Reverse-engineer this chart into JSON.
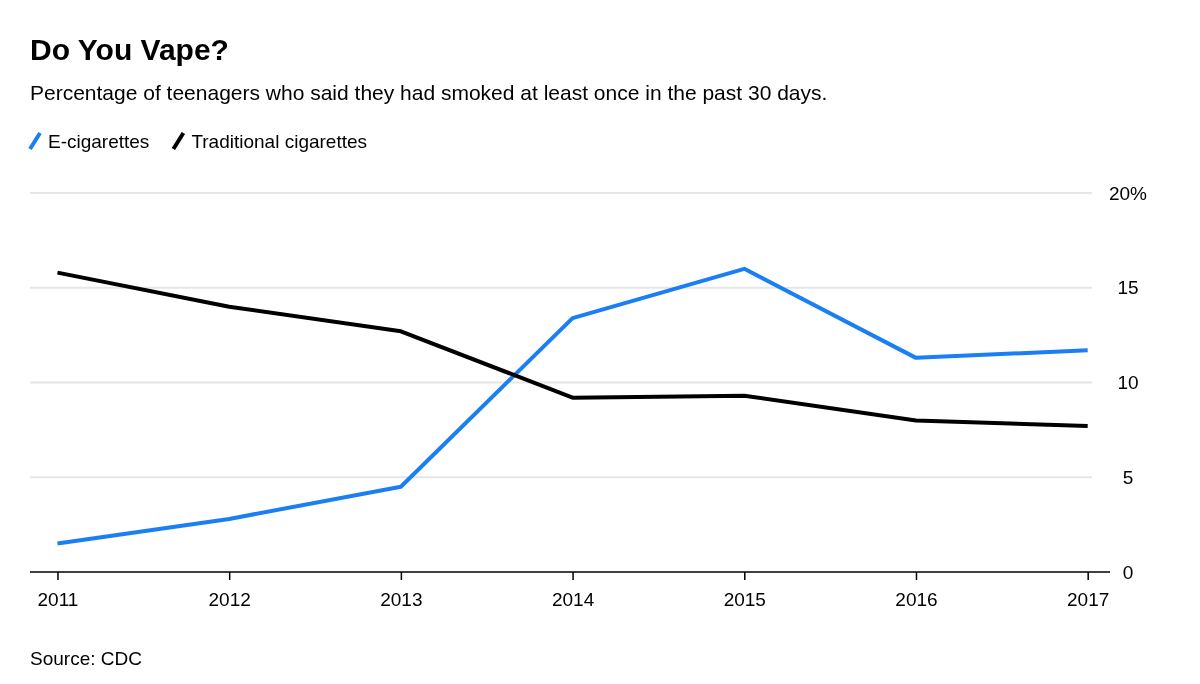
{
  "chart_data": {
    "type": "line",
    "title": "Do You Vape?",
    "subtitle": "Percentage of teenagers who said they had smoked at least once in the past 30 days.",
    "x": [
      2011,
      2012,
      2013,
      2014,
      2015,
      2016,
      2017
    ],
    "series": [
      {
        "name": "E-cigarettes",
        "color": "#1a7ef5",
        "values": [
          1.5,
          2.8,
          4.5,
          13.4,
          16.0,
          11.3,
          11.7
        ]
      },
      {
        "name": "Traditional cigarettes",
        "color": "#000000",
        "values": [
          15.8,
          14.0,
          12.7,
          9.2,
          9.3,
          8.0,
          7.7
        ]
      }
    ],
    "xlim": [
      2010.84,
      2017.13
    ],
    "xticks": [
      2011,
      2012,
      2013,
      2014,
      2015,
      2016,
      2017
    ],
    "ylim": [
      0,
      20
    ],
    "yticks": [
      0,
      5,
      10,
      15,
      {
        "value": 20,
        "label": "20%"
      }
    ],
    "grid": "y",
    "legend": "top left",
    "marker": "none",
    "line_style": "solid",
    "annotations": [
      "Source: CDC"
    ]
  }
}
